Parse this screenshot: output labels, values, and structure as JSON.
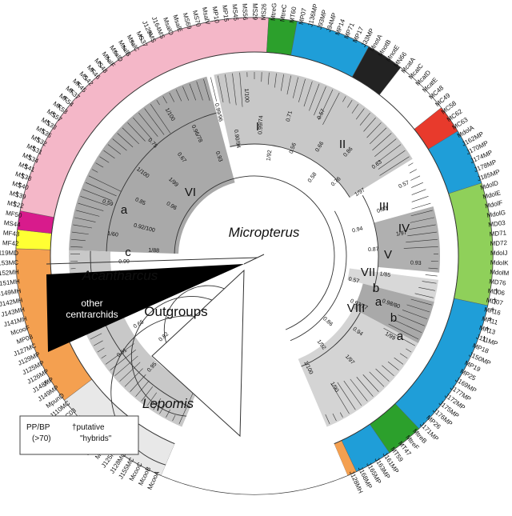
{
  "tree": {
    "center_label": "Micropterus",
    "acanthar": "Acantharcus",
    "lepomis": "Lepomis",
    "other_cent": [
      "other",
      "centrarchids"
    ],
    "outgroups": "Outgroups",
    "legend": {
      "pp": "PP/BP",
      "pp_threshold": "(>70)",
      "dagger_label": "†putative",
      "hybrids": "\"hybrids\""
    }
  },
  "clade_labels": [
    "I",
    "II",
    "III",
    "IV",
    "V",
    "VI",
    "VII",
    "VIII",
    "a",
    "b",
    "a",
    "b",
    "c",
    "a",
    "b"
  ],
  "support_values": [
    "0.96",
    "1/93",
    "0.99",
    "0.95",
    "0.82",
    "0.81",
    "0.65",
    "0.57",
    "0.96",
    "1/97",
    "0.94",
    "0.99",
    "1/88",
    "1/60",
    "0.92/100",
    "0.59",
    "0.85",
    "0.96",
    "1/100",
    "1/99",
    "0.75",
    "0.67",
    "1/100",
    "0.96/78",
    "0.93",
    "0.99/96",
    "0.90/94",
    "1/100",
    "0.99/74",
    "1/92",
    "0.71",
    "0.56",
    "0.57",
    "0.66",
    "0.58",
    "0.86",
    "0.76",
    "0.63",
    "1/97",
    "0.57",
    "0.83",
    "0.94",
    "1/97",
    "0.87",
    "0.93",
    "1/85",
    "0.57",
    "0.98/80",
    "0.97/77",
    "1/99",
    "0.94",
    "0.86",
    "1/97",
    "1/92",
    "1/90",
    "1/100"
  ],
  "leaf_groups": [
    {
      "color": "#e8e8e8",
      "leaves": [
        "McooA",
        "McooB",
        "McooC",
        "J155MC",
        "J128MC",
        "J125MC",
        "McooG",
        "J159MC",
        "McooD",
        "McooE",
        "MC02",
        "MC03",
        "J110MC"
      ]
    },
    {
      "color": "#f4a050",
      "leaves": [
        "MpunD",
        "J149MP",
        "J148MP",
        "J126MP",
        "J125MP",
        "J129MP",
        "J127MC",
        "MP08",
        "McooF",
        "J141MH",
        "J143MH",
        "J142MH",
        "J149MH",
        "J151MH",
        "J152MH",
        "J153MC",
        "J119MD"
      ]
    },
    {
      "color": "#ffff33",
      "leaves": [
        "MF42",
        "MF43"
      ]
    },
    {
      "color": "#d81b8c",
      "leaves": [
        "MS44",
        "MF50"
      ]
    },
    {
      "color": "#f4b7c8",
      "leaves": [
        "MS22",
        "MS39",
        "MS40",
        "MS38",
        "MS41",
        "MS34",
        "MS31",
        "MS32",
        "MS35",
        "MS33",
        "MS57",
        "MF53",
        "MF54",
        "MF37",
        "MF45",
        "MS42",
        "MF46",
        "MS48",
        "MsalF",
        "MsalD",
        "MsalB",
        "MsalC",
        "MS37",
        "J120MS",
        "J164MS",
        "MsalO",
        "MsalE",
        "MS69",
        "MS70",
        "MsalV",
        "MP10",
        "MP15",
        "MS45",
        "MS56",
        "MS29",
        "MS26"
      ]
    },
    {
      "color": "#2ca02c",
      "leaves": [
        "MtreG",
        "MtreC",
        "MT60"
      ]
    },
    {
      "color": "#1f9ed8",
      "leaves": [
        "MP07",
        "J136MP",
        "J93MP",
        "J94MP",
        "MP14",
        "MP71",
        "MP17",
        "J33MP"
      ]
    },
    {
      "color": "#222222",
      "leaves": [
        "MnotA",
        "MnotB",
        "MnotE",
        "MN66"
      ]
    },
    {
      "color": "#ffffff",
      "leaves": [
        "McatA",
        "McatC",
        "McatD",
        "McatE",
        "MC48",
        "MC49"
      ]
    },
    {
      "color": "#e83a2c",
      "leaves": [
        "MC58",
        "MC62",
        "MC63"
      ]
    },
    {
      "color": "#1f9ed8",
      "leaves": [
        "MdolA",
        "J162MP",
        "J170MP",
        "J174MP",
        "J178MP",
        "J185MP"
      ]
    },
    {
      "color": "#8fd05a",
      "leaves": [
        "MdolD",
        "MdolE",
        "MdolF",
        "MdolG",
        "MD03",
        "MD71",
        "MD72",
        "MdolJ",
        "MdolK",
        "MdolM",
        "MD76",
        "MD06",
        "MD07"
      ]
    },
    {
      "color": "#1f9ed8",
      "leaves": [
        "MP16",
        "MP11",
        "MP13",
        "J111MP",
        "MP18",
        "J150MP",
        "MP19",
        "MP25",
        "J169MP",
        "J177MP",
        "J172MP",
        "J175MP",
        "J176MP",
        "MP26",
        "J171MP"
      ]
    },
    {
      "color": "#2ca02c",
      "leaves": [
        "MtreB",
        "MtreF",
        "MT47",
        "MT59"
      ]
    },
    {
      "color": "#1f9ed8",
      "leaves": [
        "J161MP",
        "J163MP",
        "J165MP",
        "J168MP"
      ]
    },
    {
      "color": "#f4a050",
      "leaves": [
        "J128MH"
      ]
    }
  ],
  "dagger": "†"
}
